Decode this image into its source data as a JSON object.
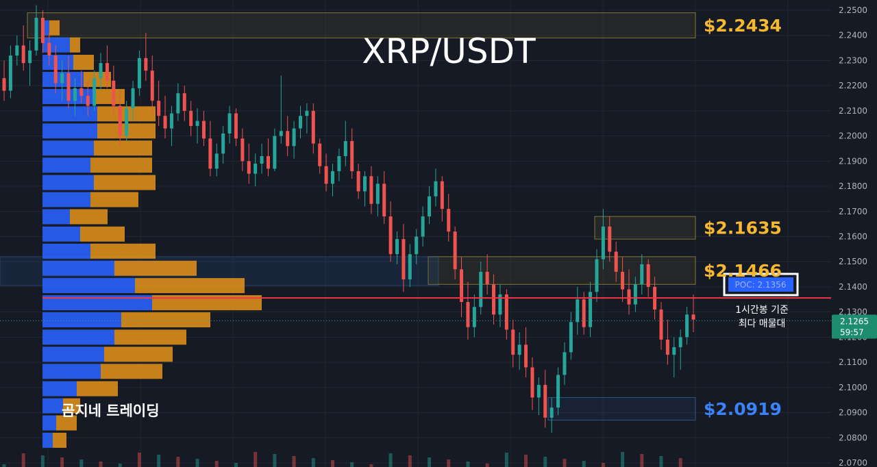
{
  "chart_data": {
    "type": "candlestick",
    "title": "XRP/USDT",
    "watermark": "곰지네 트레이딩",
    "price_axis": {
      "ylim": [
        2.07,
        2.25
      ],
      "ticks": [
        "2.2500",
        "2.2400",
        "2.2300",
        "2.2200",
        "2.2100",
        "2.2000",
        "2.1900",
        "2.1800",
        "2.1700",
        "2.1600",
        "2.1500",
        "2.1400",
        "2.1300",
        "2.1200",
        "2.1100",
        "2.1000",
        "2.0900",
        "2.0800",
        "2.0700"
      ]
    },
    "current_price": {
      "value": "2.1265",
      "countdown": "59:57"
    },
    "poc": {
      "label": "POC: 2.1356",
      "value": 2.1356,
      "note_line1": "1시간봉 기준",
      "note_line2": "최다 매물대"
    },
    "levels": [
      {
        "label": "$2.2434",
        "low": 2.239,
        "high": 2.249,
        "color": "#f5b82e"
      },
      {
        "label": "$2.1635",
        "low": 2.159,
        "high": 2.168,
        "color": "#f5b82e"
      },
      {
        "label": "$2.1466",
        "low": 2.141,
        "high": 2.152,
        "color": "#f5b82e"
      },
      {
        "label": "$2.0919",
        "low": 2.087,
        "high": 2.096,
        "color": "#3b82f6"
      }
    ],
    "volume_profile": [
      {
        "price": 2.243,
        "buy": 1.0,
        "sell": 1.5
      },
      {
        "price": 2.2362,
        "buy": 4.0,
        "sell": 1.5
      },
      {
        "price": 2.2293,
        "buy": 4.5,
        "sell": 3.0
      },
      {
        "price": 2.2225,
        "buy": 6.0,
        "sell": 4.0
      },
      {
        "price": 2.2157,
        "buy": 7.5,
        "sell": 4.5
      },
      {
        "price": 2.2088,
        "buy": 8.0,
        "sell": 8.5
      },
      {
        "price": 2.202,
        "buy": 8.0,
        "sell": 8.5
      },
      {
        "price": 2.1952,
        "buy": 7.5,
        "sell": 8.5
      },
      {
        "price": 2.1884,
        "buy": 7.0,
        "sell": 9.0
      },
      {
        "price": 2.1815,
        "buy": 7.5,
        "sell": 9.0
      },
      {
        "price": 2.1747,
        "buy": 7.0,
        "sell": 7.0
      },
      {
        "price": 2.1679,
        "buy": 4.0,
        "sell": 5.5
      },
      {
        "price": 2.161,
        "buy": 5.5,
        "sell": 6.5
      },
      {
        "price": 2.1542,
        "buy": 7.0,
        "sell": 9.5
      },
      {
        "price": 2.1474,
        "buy": 10.5,
        "sell": 12.0
      },
      {
        "price": 2.1405,
        "buy": 13.5,
        "sell": 16.0
      },
      {
        "price": 2.1337,
        "buy": 16.0,
        "sell": 16.0
      },
      {
        "price": 2.1269,
        "buy": 11.5,
        "sell": 13.0
      },
      {
        "price": 2.12,
        "buy": 10.5,
        "sell": 10.5
      },
      {
        "price": 2.1132,
        "buy": 9.0,
        "sell": 10.0
      },
      {
        "price": 2.1064,
        "buy": 8.5,
        "sell": 9.0
      },
      {
        "price": 2.0995,
        "buy": 5.0,
        "sell": 6.0
      },
      {
        "price": 2.0927,
        "buy": 3.0,
        "sell": 2.5
      },
      {
        "price": 2.0859,
        "buy": 2.0,
        "sell": 3.0
      },
      {
        "price": 2.079,
        "buy": 1.5,
        "sell": 2.0
      }
    ],
    "candles": [
      [
        2.223,
        2.23,
        2.214,
        2.218
      ],
      [
        2.218,
        2.236,
        2.215,
        2.232
      ],
      [
        2.232,
        2.24,
        2.228,
        2.236
      ],
      [
        2.236,
        2.244,
        2.226,
        2.229
      ],
      [
        2.229,
        2.238,
        2.22,
        2.234
      ],
      [
        2.234,
        2.252,
        2.232,
        2.247
      ],
      [
        2.247,
        2.25,
        2.233,
        2.237
      ],
      [
        2.237,
        2.241,
        2.228,
        2.232
      ],
      [
        2.232,
        2.236,
        2.217,
        2.221
      ],
      [
        2.221,
        2.23,
        2.214,
        2.225
      ],
      [
        2.225,
        2.232,
        2.211,
        2.214
      ],
      [
        2.214,
        2.223,
        2.208,
        2.219
      ],
      [
        2.219,
        2.226,
        2.213,
        2.216
      ],
      [
        2.216,
        2.222,
        2.208,
        2.212
      ],
      [
        2.212,
        2.226,
        2.21,
        2.223
      ],
      [
        2.223,
        2.233,
        2.218,
        2.229
      ],
      [
        2.229,
        2.236,
        2.219,
        2.222
      ],
      [
        2.222,
        2.228,
        2.209,
        2.212
      ],
      [
        2.212,
        2.218,
        2.196,
        2.2
      ],
      [
        2.2,
        2.214,
        2.198,
        2.211
      ],
      [
        2.211,
        2.222,
        2.206,
        2.219
      ],
      [
        2.219,
        2.234,
        2.216,
        2.231
      ],
      [
        2.231,
        2.241,
        2.222,
        2.226
      ],
      [
        2.226,
        2.232,
        2.209,
        2.214
      ],
      [
        2.214,
        2.222,
        2.204,
        2.208
      ],
      [
        2.208,
        2.216,
        2.199,
        2.203
      ],
      [
        2.203,
        2.212,
        2.196,
        2.209
      ],
      [
        2.209,
        2.221,
        2.206,
        2.217
      ],
      [
        2.217,
        2.22,
        2.206,
        2.21
      ],
      [
        2.21,
        2.214,
        2.2,
        2.204
      ],
      [
        2.204,
        2.211,
        2.197,
        2.206
      ],
      [
        2.206,
        2.21,
        2.196,
        2.199
      ],
      [
        2.199,
        2.206,
        2.184,
        2.187
      ],
      [
        2.187,
        2.197,
        2.184,
        2.193
      ],
      [
        2.193,
        2.204,
        2.189,
        2.201
      ],
      [
        2.201,
        2.212,
        2.197,
        2.209
      ],
      [
        2.209,
        2.211,
        2.196,
        2.199
      ],
      [
        2.199,
        2.203,
        2.186,
        2.19
      ],
      [
        2.19,
        2.197,
        2.181,
        2.185
      ],
      [
        2.185,
        2.193,
        2.18,
        2.189
      ],
      [
        2.189,
        2.197,
        2.185,
        2.192
      ],
      [
        2.192,
        2.199,
        2.184,
        2.187
      ],
      [
        2.187,
        2.203,
        2.186,
        2.2
      ],
      [
        2.2,
        2.224,
        2.197,
        2.202
      ],
      [
        2.202,
        2.208,
        2.192,
        2.196
      ],
      [
        2.196,
        2.206,
        2.191,
        2.203
      ],
      [
        2.203,
        2.212,
        2.199,
        2.208
      ],
      [
        2.208,
        2.213,
        2.201,
        2.21
      ],
      [
        2.21,
        2.213,
        2.193,
        2.197
      ],
      [
        2.197,
        2.199,
        2.185,
        2.188
      ],
      [
        2.188,
        2.193,
        2.178,
        2.181
      ],
      [
        2.181,
        2.189,
        2.176,
        2.186
      ],
      [
        2.186,
        2.195,
        2.182,
        2.192
      ],
      [
        2.192,
        2.206,
        2.188,
        2.198
      ],
      [
        2.198,
        2.203,
        2.183,
        2.186
      ],
      [
        2.186,
        2.189,
        2.175,
        2.178
      ],
      [
        2.178,
        2.186,
        2.172,
        2.184
      ],
      [
        2.184,
        2.188,
        2.169,
        2.173
      ],
      [
        2.173,
        2.184,
        2.168,
        2.181
      ],
      [
        2.181,
        2.186,
        2.165,
        2.168
      ],
      [
        2.168,
        2.174,
        2.15,
        2.153
      ],
      [
        2.153,
        2.162,
        2.149,
        2.159
      ],
      [
        2.159,
        2.165,
        2.138,
        2.143
      ],
      [
        2.143,
        2.157,
        2.14,
        2.153
      ],
      [
        2.153,
        2.163,
        2.149,
        2.16
      ],
      [
        2.16,
        2.172,
        2.156,
        2.168
      ],
      [
        2.168,
        2.18,
        2.165,
        2.176
      ],
      [
        2.176,
        2.187,
        2.172,
        2.182
      ],
      [
        2.182,
        2.184,
        2.166,
        2.171
      ],
      [
        2.171,
        2.177,
        2.158,
        2.162
      ],
      [
        2.162,
        2.164,
        2.143,
        2.147
      ],
      [
        2.147,
        2.152,
        2.128,
        2.134
      ],
      [
        2.134,
        2.142,
        2.119,
        2.124
      ],
      [
        2.124,
        2.137,
        2.12,
        2.132
      ],
      [
        2.132,
        2.15,
        2.129,
        2.146
      ],
      [
        2.146,
        2.153,
        2.137,
        2.141
      ],
      [
        2.141,
        2.145,
        2.125,
        2.129
      ],
      [
        2.129,
        2.141,
        2.124,
        2.137
      ],
      [
        2.137,
        2.139,
        2.119,
        2.123
      ],
      [
        2.123,
        2.127,
        2.108,
        2.113
      ],
      [
        2.113,
        2.122,
        2.107,
        2.117
      ],
      [
        2.117,
        2.124,
        2.104,
        2.108
      ],
      [
        2.108,
        2.112,
        2.091,
        2.096
      ],
      [
        2.096,
        2.104,
        2.089,
        2.101
      ],
      [
        2.101,
        2.107,
        2.084,
        2.088
      ],
      [
        2.088,
        2.096,
        2.082,
        2.092
      ],
      [
        2.092,
        2.108,
        2.089,
        2.105
      ],
      [
        2.105,
        2.118,
        2.101,
        2.114
      ],
      [
        2.114,
        2.13,
        2.111,
        2.126
      ],
      [
        2.126,
        2.14,
        2.121,
        2.135
      ],
      [
        2.135,
        2.138,
        2.121,
        2.124
      ],
      [
        2.124,
        2.142,
        2.12,
        2.138
      ],
      [
        2.138,
        2.155,
        2.134,
        2.151
      ],
      [
        2.151,
        2.171,
        2.147,
        2.164
      ],
      [
        2.164,
        2.168,
        2.15,
        2.154
      ],
      [
        2.154,
        2.158,
        2.142,
        2.146
      ],
      [
        2.146,
        2.152,
        2.134,
        2.139
      ],
      [
        2.139,
        2.147,
        2.129,
        2.133
      ],
      [
        2.133,
        2.144,
        2.13,
        2.141
      ],
      [
        2.141,
        2.153,
        2.137,
        2.149
      ],
      [
        2.149,
        2.151,
        2.136,
        2.14
      ],
      [
        2.14,
        2.144,
        2.127,
        2.131
      ],
      [
        2.131,
        2.134,
        2.115,
        2.119
      ],
      [
        2.119,
        2.127,
        2.109,
        2.113
      ],
      [
        2.113,
        2.12,
        2.104,
        2.116
      ],
      [
        2.116,
        2.123,
        2.107,
        2.12
      ],
      [
        2.12,
        2.132,
        2.117,
        2.129
      ],
      [
        2.129,
        2.137,
        2.122,
        2.127
      ]
    ]
  }
}
